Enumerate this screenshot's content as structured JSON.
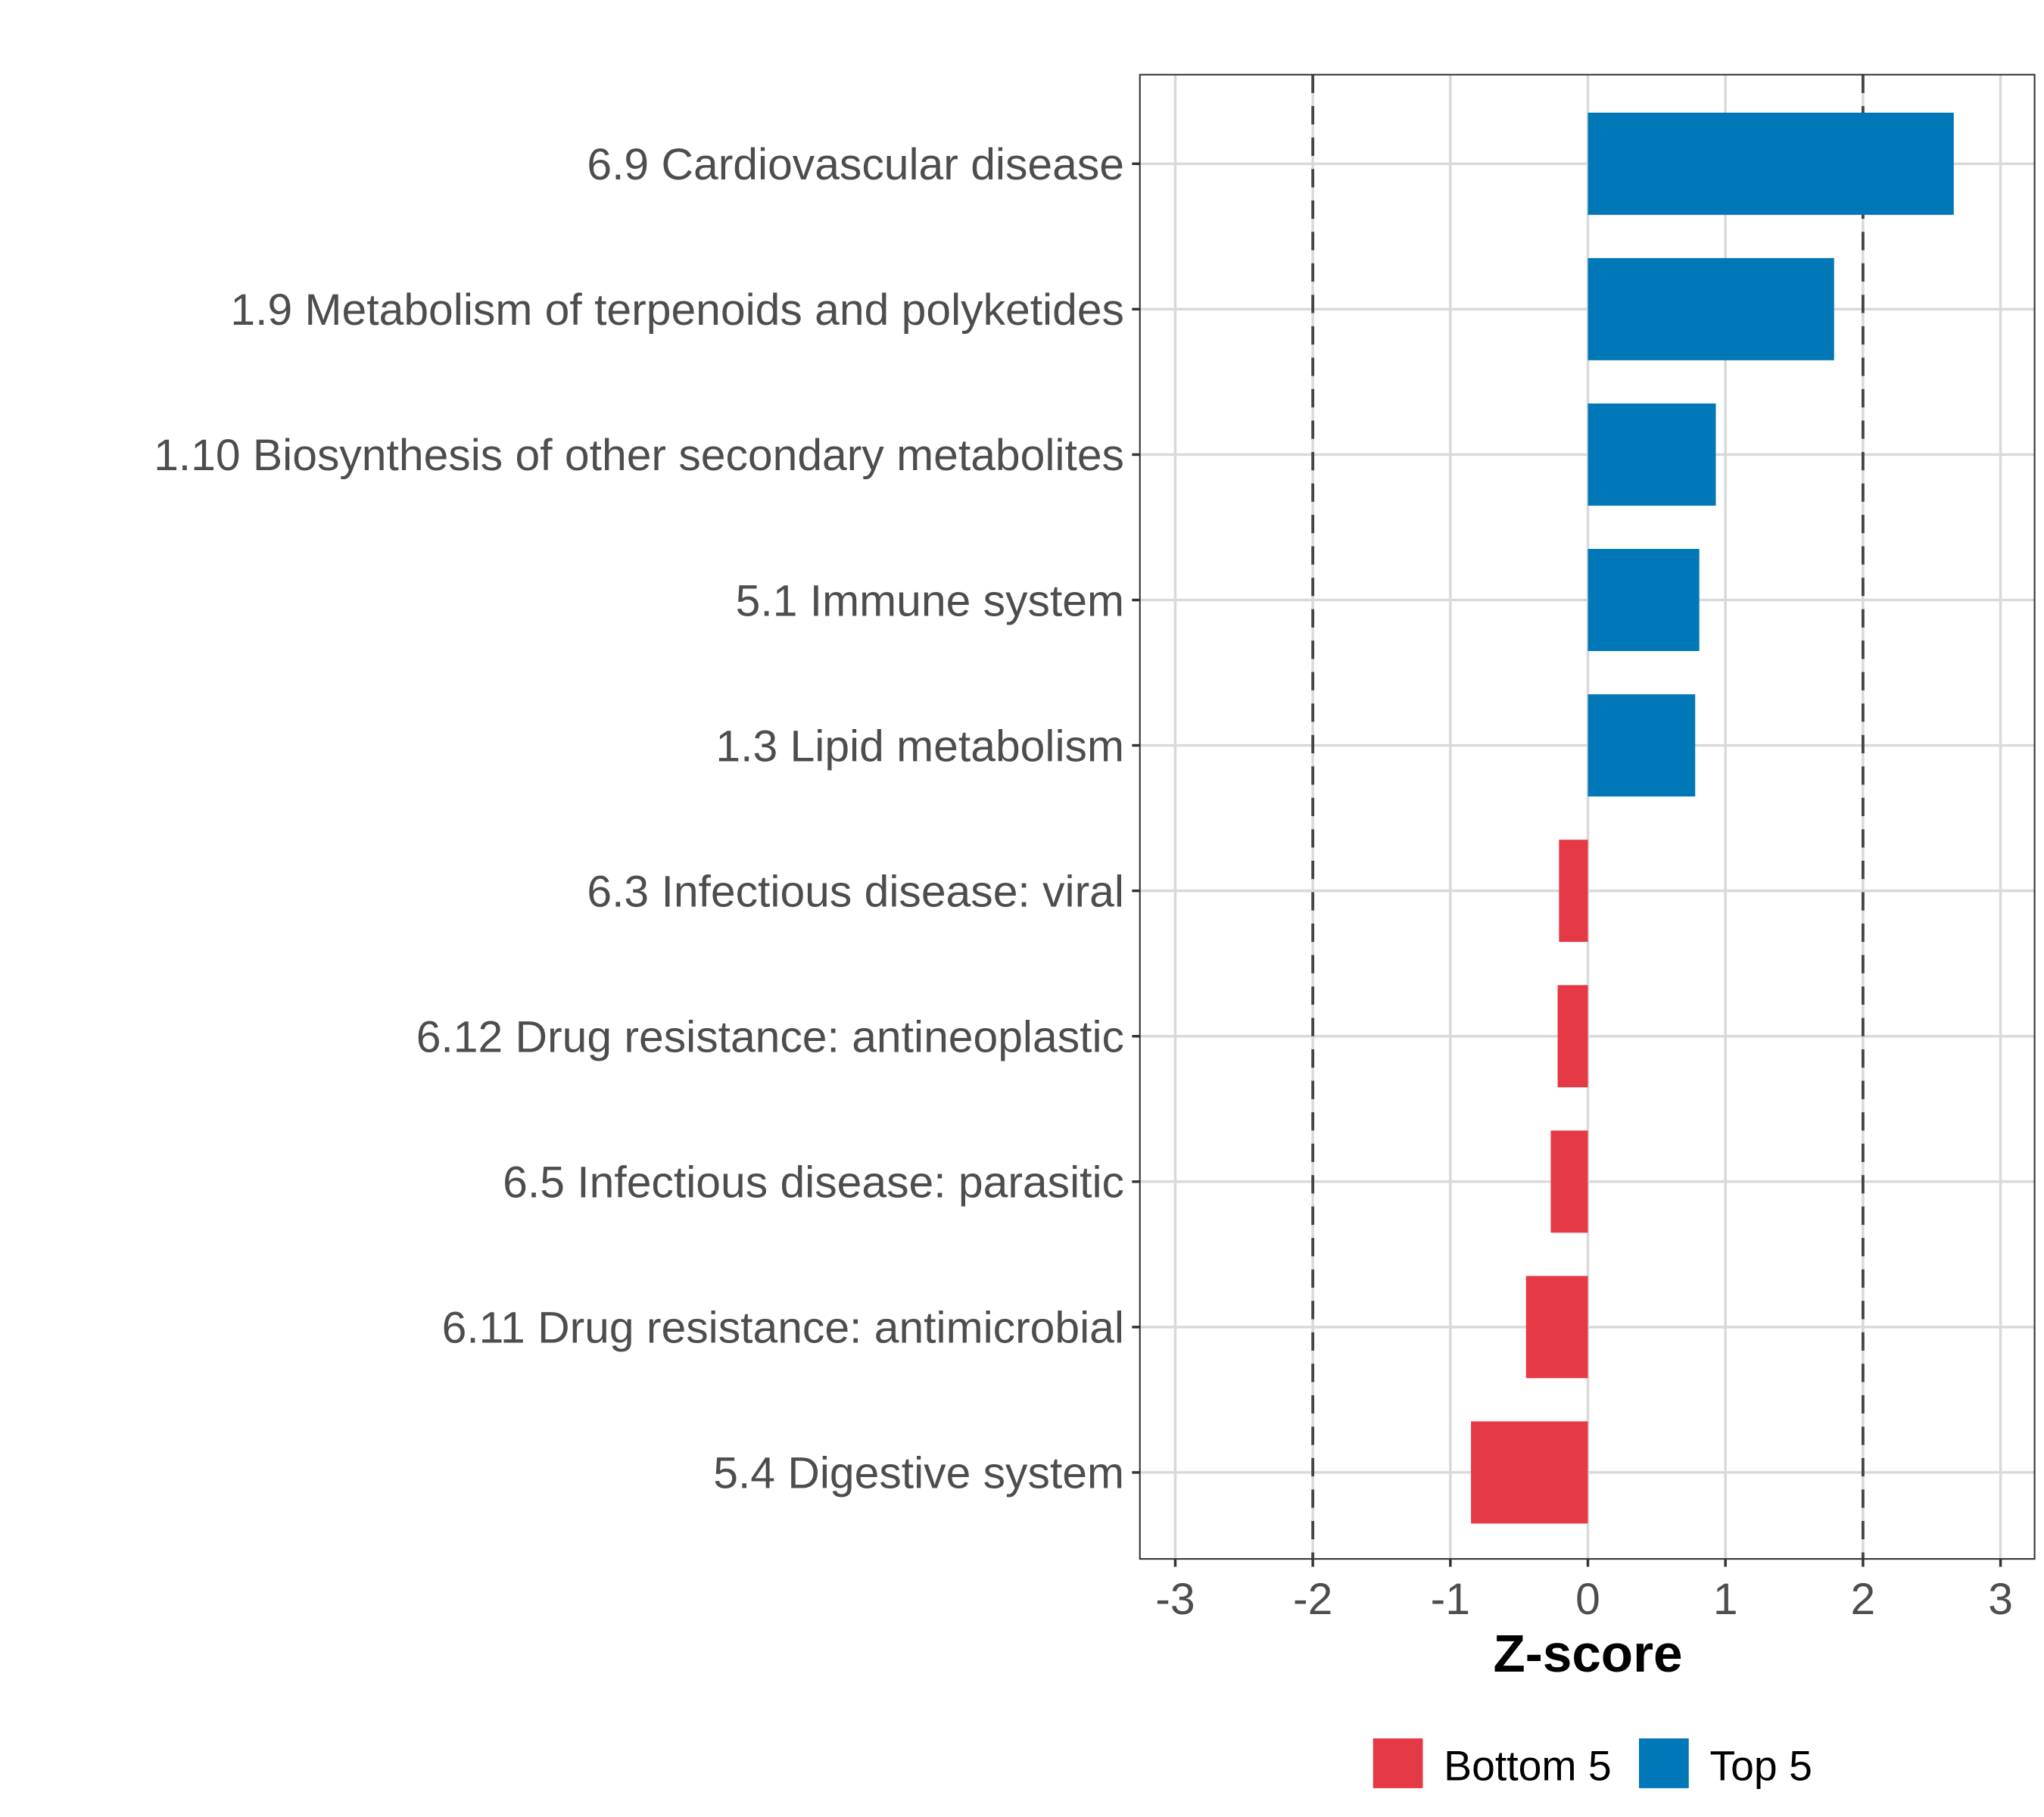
{
  "chart_data": {
    "type": "bar",
    "orientation": "horizontal",
    "title": "",
    "xlabel": "Z-score",
    "ylabel": "",
    "xlim": [
      -3.25,
      3.25
    ],
    "xticks": [
      -3,
      -2,
      -1,
      0,
      1,
      2,
      3
    ],
    "xtick_labels": [
      "-3",
      "-2",
      "-1",
      "0",
      "1",
      "2",
      "3"
    ],
    "reference_lines": [
      -2,
      2
    ],
    "grid": true,
    "legend_position": "bottom",
    "categories": [
      "6.9 Cardiovascular disease",
      "1.9 Metabolism of terpenoids and polyketides",
      "1.10 Biosynthesis of other secondary metabolites",
      "5.1 Immune system",
      "1.3 Lipid metabolism",
      "6.3 Infectious disease: viral",
      "6.12 Drug resistance: antineoplastic",
      "6.5 Infectious disease: parasitic",
      "6.11 Drug resistance: antimicrobial",
      "5.4 Digestive system"
    ],
    "values": [
      2.66,
      1.79,
      0.93,
      0.81,
      0.78,
      -0.21,
      -0.22,
      -0.27,
      -0.45,
      -0.85
    ],
    "groups": [
      "Top 5",
      "Top 5",
      "Top 5",
      "Top 5",
      "Top 5",
      "Bottom 5",
      "Bottom 5",
      "Bottom 5",
      "Bottom 5",
      "Bottom 5"
    ],
    "legend": [
      {
        "label": "Bottom 5",
        "color": "#e63946"
      },
      {
        "label": "Top 5",
        "color": "#0077b6"
      }
    ]
  }
}
